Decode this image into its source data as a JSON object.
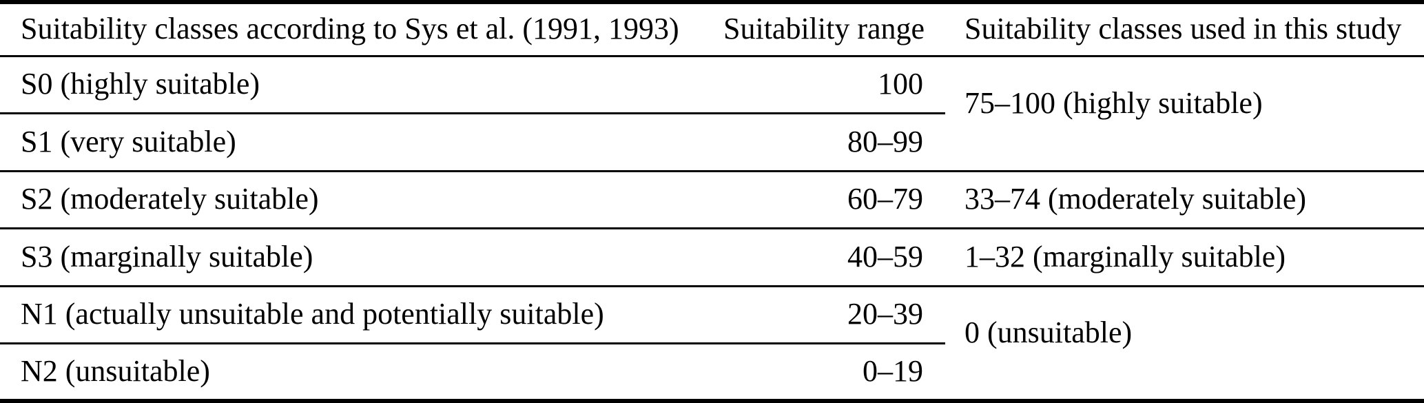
{
  "page": {
    "background_color": "#ffffff",
    "text_color": "#000000",
    "rule_color": "#000000"
  },
  "table": {
    "headers": [
      "Suitability classes according to Sys et al. (1991, 1993)",
      "Suitability range",
      "Suitability classes used in this study"
    ],
    "rows": [
      {
        "label": "S0 (highly suitable)",
        "range": "100"
      },
      {
        "label": "S1 (very suitable)",
        "range": "80–99"
      },
      {
        "label": "S2 (moderately suitable)",
        "range": "60–79",
        "study_class": "33–74 (moderately suitable)"
      },
      {
        "label": "S3 (marginally suitable)",
        "range": "40–59",
        "study_class": "1–32 (marginally suitable)"
      },
      {
        "label": "N1 (actually unsuitable and potentially suitable)",
        "range": "20–39"
      },
      {
        "label": "N2 (unsuitable)",
        "range": "0–19"
      }
    ],
    "merged_cells": [
      {
        "text": "75–100 (highly suitable)"
      },
      {
        "text": "0 (unsuitable)"
      }
    ]
  }
}
